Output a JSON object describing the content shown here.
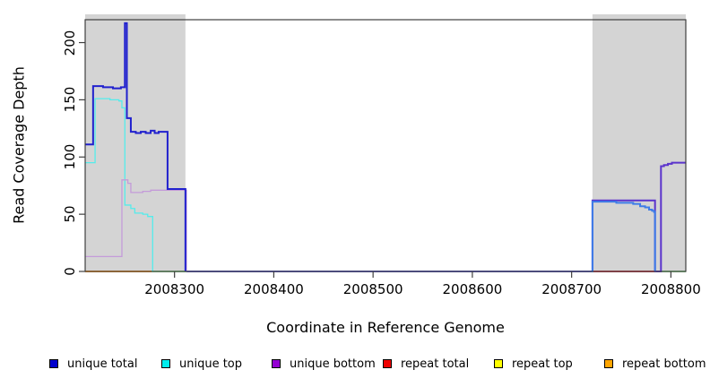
{
  "chart_data": {
    "type": "line",
    "title": "",
    "xlabel": "Coordinate in Reference Genome",
    "ylabel": "Read Coverage Depth",
    "xlim": [
      2008210,
      2008815
    ],
    "ylim": [
      0,
      220
    ],
    "xticks": [
      2008300,
      2008400,
      2008500,
      2008600,
      2008700,
      2008800
    ],
    "yticks": [
      0,
      50,
      100,
      150,
      200
    ],
    "grid": false,
    "background_color": "#ffffff",
    "shaded_regions": [
      {
        "name": "left-gray-band",
        "x0": 2008210,
        "x1": 2008311,
        "color": "#d4d4d4"
      },
      {
        "name": "right-gray-band",
        "x0": 2008721,
        "x1": 2008815,
        "color": "#d4d4d4"
      }
    ],
    "series": [
      {
        "name": "unique top",
        "color": "#55eceb",
        "width": 1.3,
        "points": [
          [
            2008210,
            95
          ],
          [
            2008220,
            151
          ],
          [
            2008235,
            150
          ],
          [
            2008244,
            149
          ],
          [
            2008247,
            143
          ],
          [
            2008250,
            58
          ],
          [
            2008256,
            55
          ],
          [
            2008260,
            51
          ],
          [
            2008268,
            50
          ],
          [
            2008273,
            48
          ],
          [
            2008278,
            0
          ]
        ]
      },
      {
        "name": "unique bottom (left segment)",
        "color": "#c49bd9",
        "width": 1.3,
        "points": [
          [
            2008210,
            13
          ],
          [
            2008247,
            80
          ],
          [
            2008253,
            77
          ],
          [
            2008256,
            69
          ],
          [
            2008268,
            70
          ],
          [
            2008276,
            71
          ],
          [
            2008312,
            0
          ]
        ]
      },
      {
        "name": "unique total (left segment)",
        "color": "#2121ce",
        "width": 2,
        "points": [
          [
            2008210,
            111
          ],
          [
            2008218,
            162
          ],
          [
            2008228,
            161
          ],
          [
            2008238,
            160
          ],
          [
            2008246,
            161
          ],
          [
            2008249,
            161
          ],
          [
            2008250,
            217
          ],
          [
            2008252,
            134
          ],
          [
            2008256,
            122
          ],
          [
            2008261,
            121
          ],
          [
            2008266,
            122
          ],
          [
            2008271,
            121
          ],
          [
            2008276,
            123
          ],
          [
            2008280,
            121
          ],
          [
            2008284,
            122
          ],
          [
            2008293,
            72
          ],
          [
            2008311,
            0
          ]
        ]
      },
      {
        "name": "unique bottom (right segment)",
        "color": "#5b33cc",
        "width": 2,
        "points": [
          [
            2008720,
            0
          ],
          [
            2008721,
            62
          ],
          [
            2008783,
            62
          ],
          [
            2008784,
            0
          ],
          [
            2008789,
            0
          ],
          [
            2008790,
            92
          ],
          [
            2008793,
            93
          ],
          [
            2008797,
            94
          ],
          [
            2008801,
            95
          ],
          [
            2008815,
            95
          ]
        ]
      },
      {
        "name": "unique total (right segment)",
        "color": "#3e7ce8",
        "width": 2,
        "points": [
          [
            2008720,
            0
          ],
          [
            2008721,
            61
          ],
          [
            2008745,
            60
          ],
          [
            2008762,
            59
          ],
          [
            2008769,
            57
          ],
          [
            2008774,
            56
          ],
          [
            2008778,
            54
          ],
          [
            2008781,
            53
          ],
          [
            2008783,
            52
          ],
          [
            2008784,
            0
          ]
        ]
      }
    ],
    "baseline_segments": [
      {
        "name": "repeat bottom at zero",
        "color": "#ffa035",
        "x0": 2008210,
        "x1": 2008277
      },
      {
        "name": "green blend at zero (left)",
        "color": "#98de98",
        "x0": 2008277,
        "x1": 2008312
      },
      {
        "name": "blue-violet blend at zero (middle)",
        "color": "#6060d8",
        "x0": 2008312,
        "x1": 2008721
      },
      {
        "name": "repeat total at zero",
        "color": "#e04858",
        "x0": 2008721,
        "x1": 2008787
      },
      {
        "name": "green blend at zero (right)",
        "color": "#98de98",
        "x0": 2008790,
        "x1": 2008815
      }
    ],
    "legend": [
      {
        "label": "unique total",
        "color": "#0000cc"
      },
      {
        "label": "unique top",
        "color": "#00eeee"
      },
      {
        "label": "unique bottom",
        "color": "#9400d3"
      },
      {
        "label": "repeat total",
        "color": "#ee0000"
      },
      {
        "label": "repeat top",
        "color": "#ffff00"
      },
      {
        "label": "repeat bottom",
        "color": "#ffa500"
      }
    ],
    "legend_position": "bottom"
  }
}
